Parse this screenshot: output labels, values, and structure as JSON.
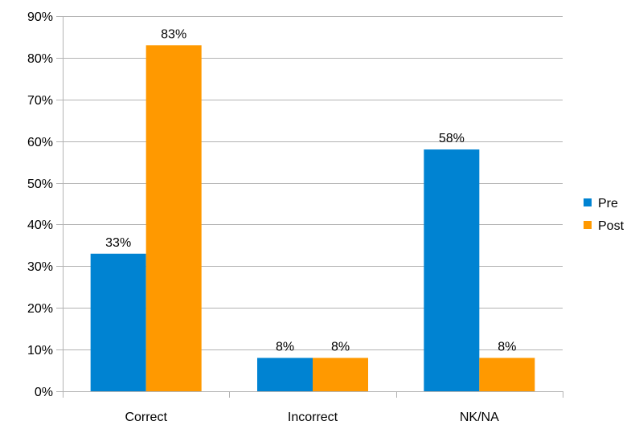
{
  "chart_data": {
    "type": "bar",
    "categories": [
      "Correct",
      "Incorrect",
      "NK/NA"
    ],
    "series": [
      {
        "name": "Pre",
        "values": [
          33,
          8,
          58
        ],
        "labels": [
          "33%",
          "8%",
          "58%"
        ],
        "color": "#0083d2"
      },
      {
        "name": "Post",
        "values": [
          83,
          8,
          8
        ],
        "labels": [
          "83%",
          "8%",
          "8%"
        ],
        "color": "#ff9900"
      }
    ],
    "ylim": [
      0,
      90
    ],
    "yticks": [
      "0%",
      "10%",
      "20%",
      "30%",
      "40%",
      "50%",
      "60%",
      "70%",
      "80%",
      "90%"
    ],
    "grid": true,
    "legend_position": "right",
    "grid_color": "#b3b3b3"
  }
}
